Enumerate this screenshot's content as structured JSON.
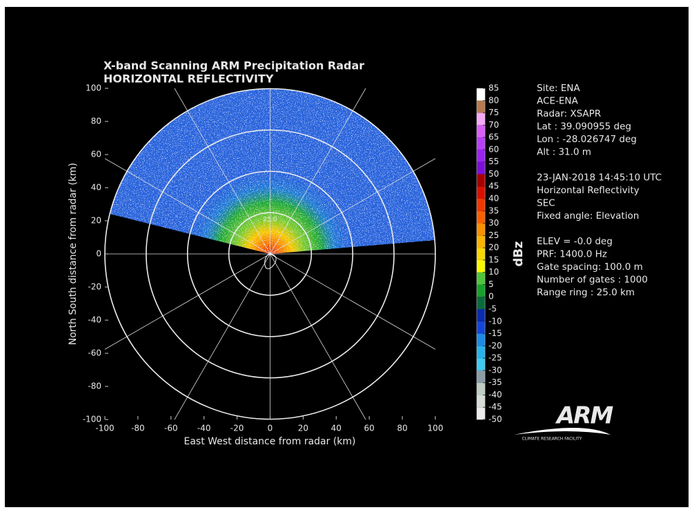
{
  "chart_data": {
    "type": "radar_ppi",
    "title": "X-band Scanning ARM Precipitation Radar",
    "subtitle": "HORIZONTAL REFLECTIVITY",
    "x_label": "East West distance from radar (km)",
    "y_label": "North South distance from radar (km)",
    "xlim": [
      -100,
      100
    ],
    "ylim": [
      -100,
      100
    ],
    "xticks": [
      -100,
      -80,
      -60,
      -40,
      -20,
      0,
      20,
      40,
      60,
      80,
      100
    ],
    "yticks": [
      -100,
      -80,
      -60,
      -40,
      -20,
      0,
      20,
      40,
      60,
      80,
      100
    ],
    "ring_label": {
      "value": 25,
      "label": "25.0"
    },
    "colorbar": {
      "label": "dBz",
      "lim": [
        -50,
        85
      ],
      "ticks": [
        -50,
        -45,
        -40,
        -35,
        -30,
        -25,
        -20,
        -15,
        -10,
        -5,
        0,
        5,
        10,
        15,
        20,
        25,
        30,
        35,
        40,
        45,
        50,
        55,
        60,
        65,
        70,
        75,
        80,
        85
      ],
      "colors": [
        "#ececec",
        "#d6ddd6",
        "#bfcdc2",
        "#8b9ea8",
        "#3fcbf2",
        "#28b2ea",
        "#1d8ce4",
        "#1446d8",
        "#0b2bb0",
        "#0b6a3c",
        "#17a12c",
        "#4ec53c",
        "#f8f800",
        "#f8d800",
        "#f8b400",
        "#f89000",
        "#f86000",
        "#f03800",
        "#d81000",
        "#a80000",
        "#7a10d8",
        "#9a24f0",
        "#b840f8",
        "#d860f8",
        "#f4a8f8",
        "#b47a52",
        "#ffffff"
      ]
    }
  },
  "info": [
    [
      "Site: ENA",
      "ACE-ENA",
      "Radar: XSAPR",
      "Lat : 39.090955 deg",
      "Lon : -28.026747 deg",
      "Alt : 31.0 m"
    ],
    [
      "23-JAN-2018 14:45:10 UTC",
      "Horizontal Reflectivity",
      "SEC",
      "Fixed angle: Elevation"
    ],
    [
      "ELEV = -0.0 deg",
      "PRF: 1400.0 Hz",
      "Gate spacing: 100.0 m",
      "Number of gates : 1000",
      "Range ring : 25.0 km"
    ]
  ],
  "logo": {
    "text": "ARM",
    "subtext": "CLIMATE RESEARCH FACILITY"
  }
}
